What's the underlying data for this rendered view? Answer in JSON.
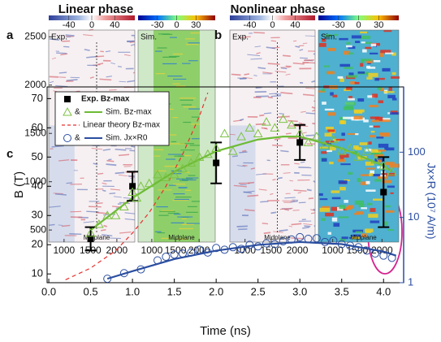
{
  "chart_data": [
    {
      "type": "image",
      "title": "Linear phase",
      "panel_label": "a",
      "image_labels": [
        "Exp.",
        "Sim."
      ],
      "annotation": "Midplane",
      "colorbars": [
        {
          "lim": [
            -75,
            75
          ],
          "ticks": [
            -40,
            0,
            40
          ]
        },
        {
          "lim": [
            -60,
            60
          ],
          "ticks": [
            -30,
            0,
            30
          ]
        }
      ],
      "xlim": [
        710,
        2340
      ],
      "xticks": [
        1000,
        1500,
        2000
      ],
      "ylim": [
        375,
        2570
      ],
      "yticks": [
        500,
        1000,
        1500,
        2000,
        2500
      ]
    },
    {
      "type": "image",
      "title": "Nonlinear phase",
      "panel_label": "b",
      "image_labels": [
        "Exp.",
        "Sim."
      ],
      "annotation": "Midplane",
      "colorbars": [
        {
          "lim": [
            -75,
            75
          ],
          "ticks": [
            -40,
            0,
            40
          ]
        },
        {
          "lim": [
            -60,
            60
          ],
          "ticks": [
            -30,
            0,
            30
          ]
        }
      ],
      "xlim": [
        710,
        2340
      ],
      "xticks": [
        1000,
        1500,
        2000
      ]
    },
    {
      "type": "line",
      "panel_label": "c",
      "x_label": "Time (ns)",
      "y_label": "B (T)",
      "y2_label": "Jx×R (10⁷ A/m)",
      "xlim": [
        -0.02,
        4.24
      ],
      "xticks": [
        {
          "value": 0,
          "label": "0.0"
        },
        0.5,
        {
          "value": 1,
          "label": "1.0"
        },
        1.5,
        {
          "value": 2,
          "label": "2.0"
        },
        2.5,
        {
          "value": 3,
          "label": "3.0"
        },
        3.5,
        {
          "value": 4,
          "label": "4.0"
        }
      ],
      "ylim": [
        7,
        74
      ],
      "yticks": [
        10,
        20,
        30,
        40,
        50,
        60,
        70
      ],
      "y2lim": [
        1,
        1000
      ],
      "y2ticks": [
        1,
        10,
        100
      ],
      "y2_log": true,
      "y2_color": "#2b4ea0",
      "legend_joiner": "&",
      "series": [
        {
          "name": "Exp. Bz-max",
          "color": "#000000",
          "marker": "square",
          "x": [
            0.5,
            1,
            2,
            3,
            4
          ],
          "values": [
            22,
            40,
            48,
            55,
            38
          ],
          "errors": [
            4,
            5,
            7,
            6,
            12
          ]
        },
        {
          "color": "#7cc242",
          "marker": "triangle",
          "x": [
            0.5,
            0.6,
            0.7,
            0.8,
            0.9,
            1.0,
            1.05,
            1.1,
            1.2,
            1.3,
            1.4,
            1.5,
            1.6,
            1.7,
            1.8,
            1.9,
            2.0,
            2.1,
            2.2,
            2.3,
            2.4,
            2.5,
            2.6,
            2.7,
            2.8,
            2.9,
            3.0,
            3.1,
            3.2,
            3.3,
            3.4,
            3.5,
            3.6,
            3.7,
            3.8,
            3.9,
            4.0,
            4.1
          ],
          "values": [
            24,
            27,
            30,
            30,
            33,
            38,
            36,
            40,
            41,
            44,
            43,
            44,
            46,
            48,
            50,
            51,
            53,
            58,
            52,
            57,
            60,
            58,
            62,
            60,
            63,
            61,
            58,
            55,
            57,
            54,
            56,
            52,
            53,
            50,
            52,
            49,
            47,
            45
          ]
        },
        {
          "name": "Sim. Bz-max",
          "color": "#6dbb35",
          "marker": "none",
          "x": [
            0.5,
            1,
            1.5,
            2,
            2.5,
            2.8,
            3,
            3.5,
            4,
            4.1
          ],
          "values": [
            25,
            36,
            45,
            52,
            56,
            57,
            57,
            53,
            47,
            45
          ]
        },
        {
          "name": "Linear theory Bz-max",
          "color": "#e8312f",
          "marker": "none",
          "dash": true,
          "x": [
            0.2,
            0.5,
            0.8,
            1.0,
            1.2,
            1.4,
            1.6,
            1.8,
            1.9
          ],
          "values": [
            8,
            12,
            18,
            24,
            31,
            40,
            51,
            64,
            72
          ]
        },
        {
          "color": "#2b4ea0",
          "marker": "circle",
          "axis": "y2",
          "x": [
            0.7,
            0.9,
            1.1,
            1.3,
            1.4,
            1.5,
            1.6,
            1.7,
            1.8,
            1.9,
            2.0,
            2.1,
            2.2,
            2.3,
            2.4,
            2.5,
            2.6,
            2.7,
            2.8,
            2.9,
            3.0,
            3.1,
            3.2,
            3.3,
            3.4,
            3.5,
            3.6,
            3.7,
            3.8,
            3.9,
            4.0,
            4.1
          ],
          "values": [
            1.15,
            1.4,
            1.6,
            2.2,
            2.5,
            2.7,
            2.8,
            2.9,
            3.2,
            2.9,
            3.4,
            3.2,
            3.5,
            3.3,
            3.8,
            3.6,
            4.0,
            3.9,
            4.3,
            4.6,
            5.0,
            4.7,
            4.8,
            4.2,
            4.4,
            3.9,
            3.7,
            3.5,
            3.1,
            2.8,
            2.6,
            2.4
          ]
        },
        {
          "name": "Sim. Jx×R0",
          "color": "#2b4ea0",
          "marker": "none",
          "axis": "y2",
          "x": [
            0.7,
            1,
            1.5,
            2,
            2.5,
            3,
            3.5,
            4,
            4.15
          ],
          "values": [
            1.15,
            1.5,
            2.3,
            3.1,
            3.8,
            4.2,
            3.9,
            3.0,
            2.6
          ]
        }
      ]
    }
  ]
}
